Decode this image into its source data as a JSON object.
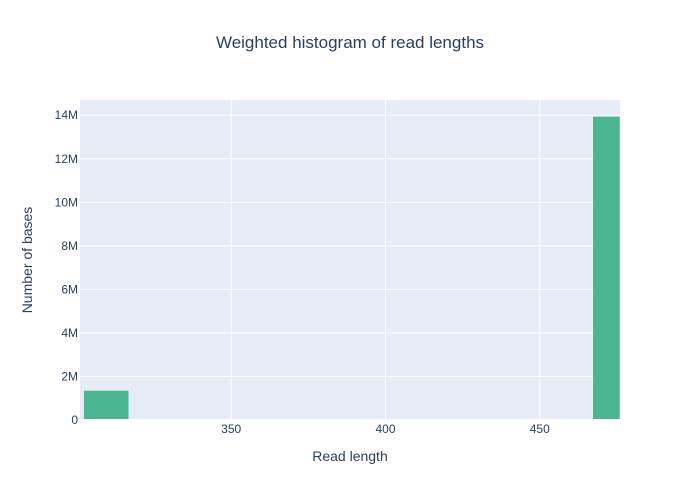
{
  "chart_data": {
    "type": "bar",
    "title": "Weighted histogram of read lengths",
    "xlabel": "Read length",
    "ylabel": "Number of bases",
    "xlim": [
      301,
      476
    ],
    "ylim": [
      0,
      14700000
    ],
    "x_ticks": [
      {
        "value": 350,
        "label": "350"
      },
      {
        "value": 400,
        "label": "400"
      },
      {
        "value": 450,
        "label": "450"
      }
    ],
    "y_ticks": [
      {
        "value": 0,
        "label": "0"
      },
      {
        "value": 2000000,
        "label": "2M"
      },
      {
        "value": 4000000,
        "label": "4M"
      },
      {
        "value": 6000000,
        "label": "6M"
      },
      {
        "value": 8000000,
        "label": "8M"
      },
      {
        "value": 10000000,
        "label": "10M"
      },
      {
        "value": 12000000,
        "label": "12M"
      },
      {
        "value": 14000000,
        "label": "14M"
      }
    ],
    "bin_width": 15,
    "bins": [
      {
        "start": 302,
        "end": 317,
        "value": 1360000
      },
      {
        "start": 317,
        "end": 332,
        "value": 0
      },
      {
        "start": 332,
        "end": 347,
        "value": 15000
      },
      {
        "start": 347,
        "end": 362,
        "value": 10000
      },
      {
        "start": 362,
        "end": 377,
        "value": 10000
      },
      {
        "start": 377,
        "end": 392,
        "value": 8000
      },
      {
        "start": 392,
        "end": 407,
        "value": 15000
      },
      {
        "start": 407,
        "end": 422,
        "value": 8000
      },
      {
        "start": 422,
        "end": 437,
        "value": 8000
      },
      {
        "start": 437,
        "end": 452,
        "value": 8000
      },
      {
        "start": 452,
        "end": 467,
        "value": 10000
      },
      {
        "start": 467,
        "end": 482,
        "value": 13950000
      }
    ],
    "grid": true,
    "colors": {
      "bar": "#4bb491",
      "plot_background": "#e5ecf6",
      "grid": "#ffffff",
      "text": "#2a3f5f"
    }
  }
}
